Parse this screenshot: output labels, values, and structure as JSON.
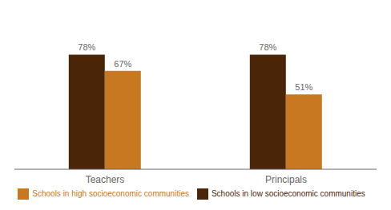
{
  "chart_data": {
    "type": "bar",
    "categories": [
      "Teachers",
      "Principals"
    ],
    "series": [
      {
        "name": "Schools in low socioeconomic communities",
        "color": "#4A2508",
        "values": [
          78,
          78
        ],
        "value_labels": [
          "78%",
          "78%"
        ]
      },
      {
        "name": "Schools in high socioeconomic communities",
        "color": "#C87820",
        "values": [
          67,
          51
        ],
        "value_labels": [
          "67%",
          "51%"
        ]
      }
    ],
    "ylim": [
      0,
      100
    ],
    "data_labels": true,
    "tick_labels": "x",
    "grid": false,
    "legend": "bottom"
  }
}
